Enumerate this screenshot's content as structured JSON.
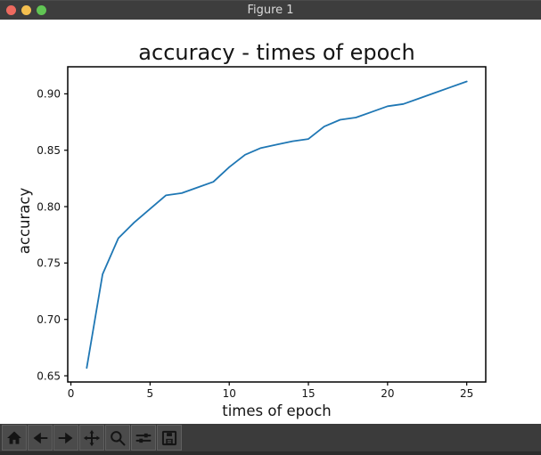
{
  "window": {
    "title": "Figure 1",
    "controls": {
      "close_color": "#ee6a5f",
      "minimize_color": "#f4bf4f",
      "maximize_color": "#61c554"
    }
  },
  "chart_data": {
    "type": "line",
    "title": "accuracy - times of epoch",
    "xlabel": "times of epoch",
    "ylabel": "accuracy",
    "x": [
      1,
      2,
      3,
      4,
      5,
      6,
      7,
      8,
      9,
      10,
      11,
      12,
      13,
      14,
      15,
      16,
      17,
      18,
      19,
      20,
      21,
      22,
      23,
      24,
      25
    ],
    "series": [
      {
        "name": "accuracy",
        "color": "#1f77b4",
        "values": [
          0.657,
          0.74,
          0.772,
          0.786,
          0.798,
          0.81,
          0.812,
          0.817,
          0.822,
          0.835,
          0.846,
          0.852,
          0.855,
          0.858,
          0.86,
          0.871,
          0.877,
          0.879,
          0.884,
          0.889,
          0.891,
          0.896,
          0.901,
          0.906,
          0.911
        ]
      }
    ],
    "xlim": [
      -0.2,
      26.2
    ],
    "ylim": [
      0.6445,
      0.924
    ],
    "xticks": [
      0,
      5,
      10,
      15,
      20,
      25
    ],
    "yticks": [
      0.65,
      0.7,
      0.75,
      0.8,
      0.85,
      0.9
    ],
    "grid": false,
    "legend": null
  },
  "toolbar": {
    "buttons": [
      {
        "icon": "home-icon",
        "action": "home"
      },
      {
        "icon": "back-arrow-icon",
        "action": "back"
      },
      {
        "icon": "forward-arrow-icon",
        "action": "forward"
      },
      {
        "icon": "pan-icon",
        "action": "pan"
      },
      {
        "icon": "zoom-icon",
        "action": "zoom"
      },
      {
        "icon": "subplots-icon",
        "action": "configure-subplots"
      },
      {
        "icon": "save-icon",
        "action": "save"
      }
    ]
  }
}
